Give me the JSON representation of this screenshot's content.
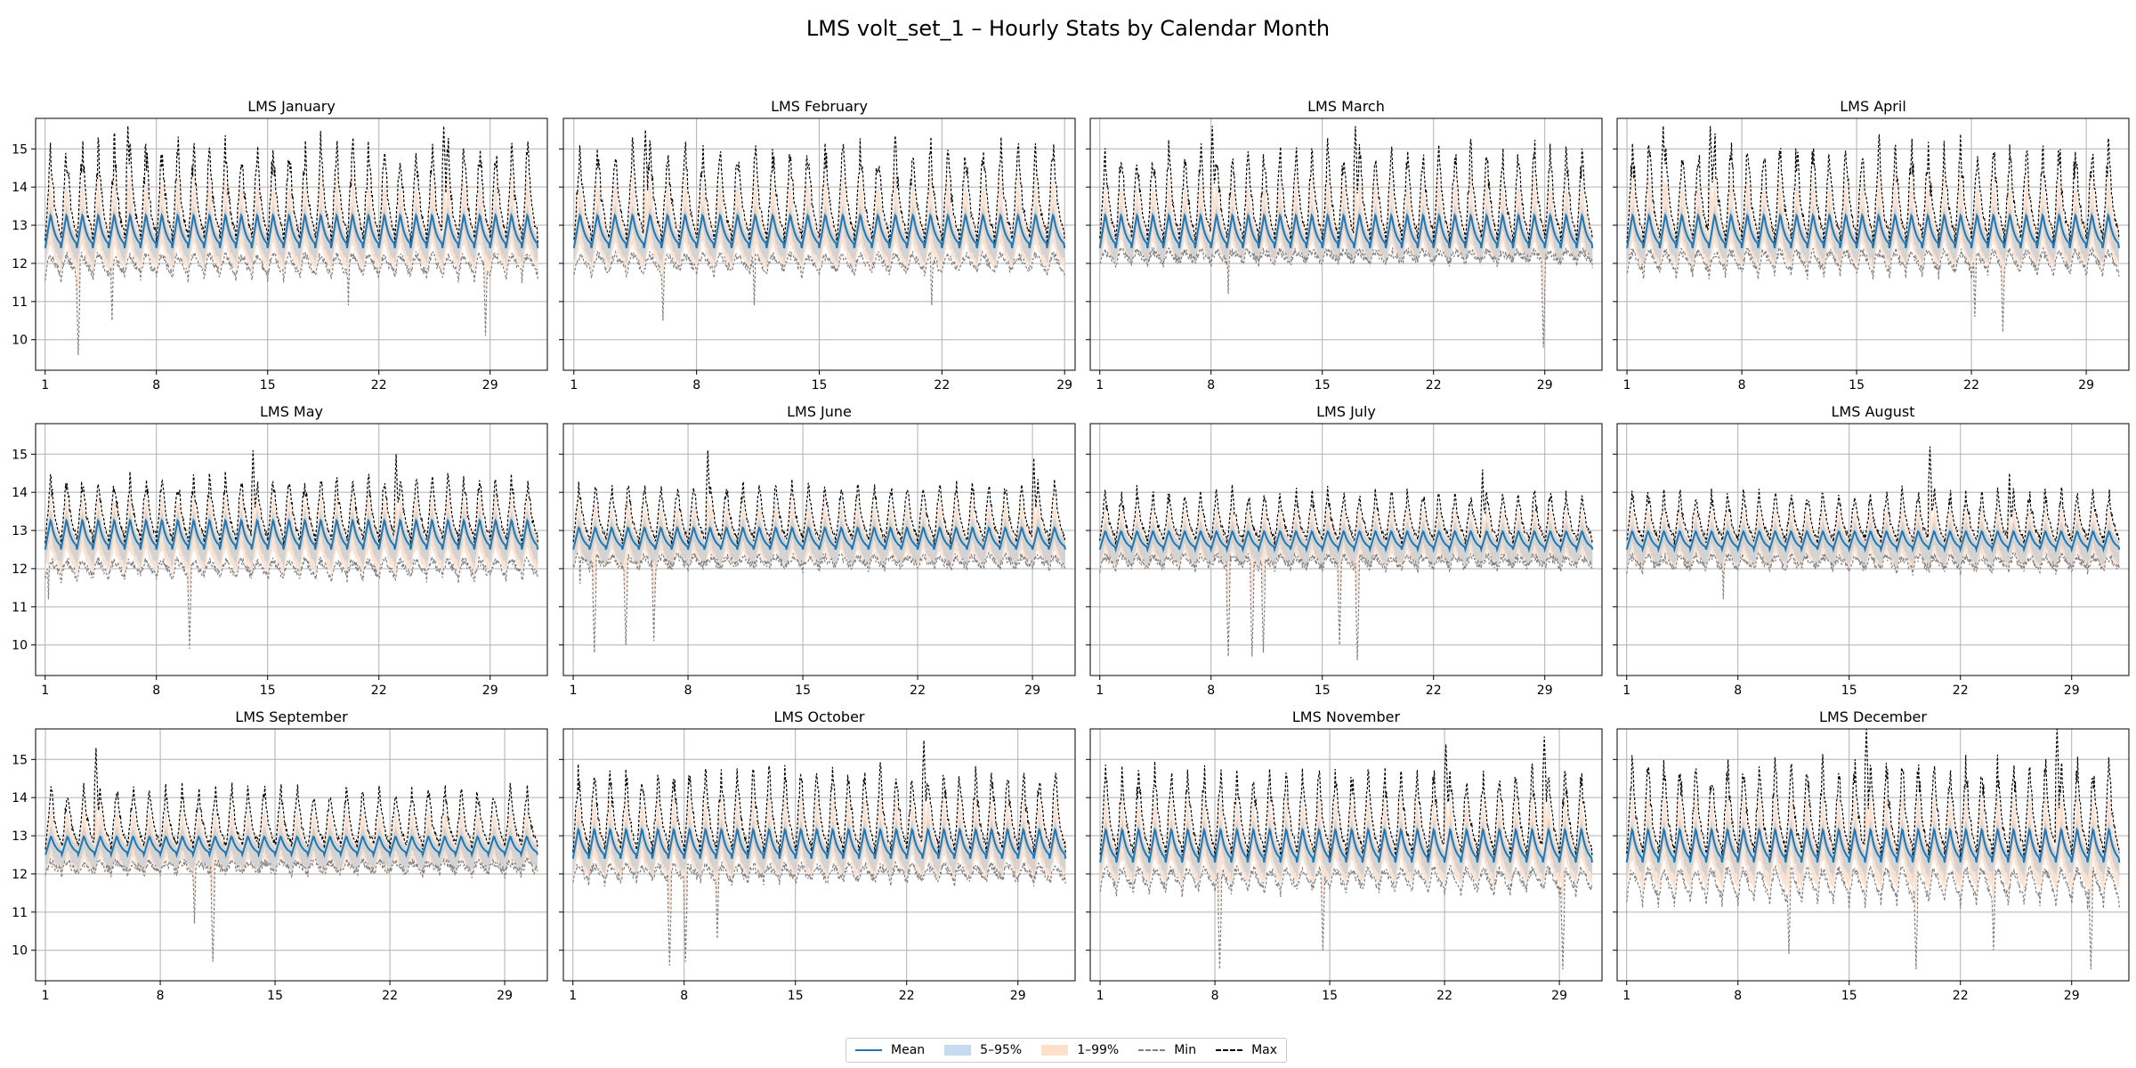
{
  "chart_data": {
    "type": "line",
    "title": "LMS volt_set_1 – Hourly Stats by Calendar Month",
    "ylim": [
      9.2,
      15.8
    ],
    "yticks": [
      10,
      11,
      12,
      13,
      14,
      15
    ],
    "xticks": [
      1,
      8,
      15,
      22,
      29
    ],
    "grid": true,
    "sharey": true,
    "layout": {
      "rows": 3,
      "cols": 4
    },
    "legend": {
      "placement": "bottom-center",
      "entries": [
        {
          "label": "Mean",
          "style": "line",
          "color": "#1f77b4"
        },
        {
          "label": "5–95%",
          "style": "band",
          "color": "#c6dbef"
        },
        {
          "label": "1–99%",
          "style": "band",
          "color": "#fde0cc"
        },
        {
          "label": "Min",
          "style": "dashed",
          "color": "#808080"
        },
        {
          "label": "Max",
          "style": "dashed",
          "color": "#000000"
        }
      ]
    },
    "colors": {
      "mean": "#1f77b4",
      "band_5_95": "#d3d3d3",
      "band_1_99": "#fbe3d4",
      "min": "#808080",
      "max": "#000000"
    },
    "panels": [
      {
        "title": "LMS January",
        "days": 31,
        "mean_range": [
          12.4,
          13.3
        ],
        "max_range": [
          13.6,
          15.6
        ],
        "min_range": [
          11.2,
          12.2
        ],
        "min_spikes": [
          [
            3.1,
            9.6
          ],
          [
            5.2,
            10.5
          ],
          [
            20.1,
            10.9
          ],
          [
            28.7,
            10.1
          ]
        ],
        "max_spikes": [
          [
            6.2,
            15.6
          ],
          [
            26.1,
            15.6
          ]
        ]
      },
      {
        "title": "LMS February",
        "days": 28,
        "mean_range": [
          12.4,
          13.3
        ],
        "max_range": [
          13.7,
          15.5
        ],
        "min_range": [
          11.4,
          12.2
        ],
        "min_spikes": [
          [
            6.1,
            10.5
          ],
          [
            11.3,
            10.9
          ],
          [
            21.4,
            10.9
          ]
        ],
        "max_spikes": [
          [
            5.1,
            15.5
          ]
        ]
      },
      {
        "title": "LMS March",
        "days": 31,
        "mean_range": [
          12.4,
          13.3
        ],
        "max_range": [
          13.8,
          15.4
        ],
        "min_range": [
          11.8,
          12.3
        ],
        "min_spikes": [
          [
            28.9,
            9.8
          ],
          [
            9.1,
            11.2
          ]
        ],
        "max_spikes": [
          [
            8.1,
            15.6
          ],
          [
            17.1,
            15.6
          ]
        ]
      },
      {
        "title": "LMS April",
        "days": 30,
        "mean_range": [
          12.4,
          13.3
        ],
        "max_range": [
          13.6,
          15.6
        ],
        "min_range": [
          11.3,
          12.3
        ],
        "min_spikes": [
          [
            22.2,
            10.6
          ],
          [
            23.9,
            10.2
          ]
        ],
        "max_spikes": [
          [
            3.2,
            15.6
          ],
          [
            6.1,
            15.6
          ]
        ]
      },
      {
        "title": "LMS May",
        "days": 31,
        "mean_range": [
          12.5,
          13.3
        ],
        "max_range": [
          13.6,
          14.6
        ],
        "min_range": [
          11.4,
          12.2
        ],
        "min_spikes": [
          [
            10.1,
            9.9
          ],
          [
            1.2,
            11.2
          ]
        ],
        "max_spikes": [
          [
            14.1,
            15.1
          ],
          [
            23.1,
            15.0
          ]
        ]
      },
      {
        "title": "LMS June",
        "days": 30,
        "mean_range": [
          12.5,
          13.1
        ],
        "max_range": [
          13.6,
          14.4
        ],
        "min_range": [
          11.8,
          12.3
        ],
        "min_spikes": [
          [
            2.3,
            9.8
          ],
          [
            4.2,
            10.0
          ],
          [
            5.9,
            10.1
          ],
          [
            1.4,
            11.6
          ]
        ],
        "max_spikes": [
          [
            9.2,
            15.1
          ],
          [
            29.1,
            14.9
          ]
        ]
      },
      {
        "title": "LMS July",
        "days": 31,
        "mean_range": [
          12.5,
          13.0
        ],
        "max_range": [
          13.4,
          14.2
        ],
        "min_range": [
          11.8,
          12.3
        ],
        "min_spikes": [
          [
            9.1,
            9.7
          ],
          [
            10.6,
            9.7
          ],
          [
            11.3,
            9.8
          ],
          [
            16.1,
            10.0
          ],
          [
            17.2,
            9.6
          ]
        ],
        "max_spikes": [
          [
            25.1,
            14.6
          ]
        ]
      },
      {
        "title": "LMS August",
        "days": 31,
        "mean_range": [
          12.5,
          13.0
        ],
        "max_range": [
          13.4,
          14.2
        ],
        "min_range": [
          11.7,
          12.3
        ],
        "min_spikes": [
          [
            7.1,
            11.2
          ]
        ],
        "max_spikes": [
          [
            20.1,
            15.2
          ],
          [
            25.1,
            14.5
          ]
        ]
      },
      {
        "title": "LMS September",
        "days": 30,
        "mean_range": [
          12.5,
          13.0
        ],
        "max_range": [
          13.6,
          14.5
        ],
        "min_range": [
          11.8,
          12.3
        ],
        "min_spikes": [
          [
            11.2,
            9.7
          ],
          [
            10.1,
            10.7
          ]
        ],
        "max_spikes": [
          [
            4.1,
            15.3
          ]
        ]
      },
      {
        "title": "LMS October",
        "days": 31,
        "mean_range": [
          12.4,
          13.2
        ],
        "max_range": [
          13.7,
          15.0
        ],
        "min_range": [
          11.5,
          12.2
        ],
        "min_spikes": [
          [
            7.1,
            9.6
          ],
          [
            8.1,
            9.7
          ],
          [
            10.1,
            10.3
          ]
        ],
        "max_spikes": [
          [
            23.1,
            15.5
          ]
        ]
      },
      {
        "title": "LMS November",
        "days": 30,
        "mean_range": [
          12.3,
          13.2
        ],
        "max_range": [
          13.6,
          15.0
        ],
        "min_range": [
          11.1,
          12.1
        ],
        "min_spikes": [
          [
            8.3,
            9.5
          ],
          [
            14.6,
            10.0
          ],
          [
            29.2,
            9.5
          ]
        ],
        "max_spikes": [
          [
            28.1,
            15.6
          ],
          [
            22.1,
            15.4
          ]
        ]
      },
      {
        "title": "LMS December",
        "days": 31,
        "mean_range": [
          12.3,
          13.2
        ],
        "max_range": [
          13.6,
          15.3
        ],
        "min_range": [
          10.6,
          12.1
        ],
        "min_spikes": [
          [
            11.2,
            9.9
          ],
          [
            19.2,
            9.5
          ],
          [
            24.1,
            10.0
          ],
          [
            30.2,
            9.5
          ]
        ],
        "max_spikes": [
          [
            16.1,
            15.8
          ],
          [
            28.1,
            15.8
          ]
        ]
      }
    ]
  }
}
